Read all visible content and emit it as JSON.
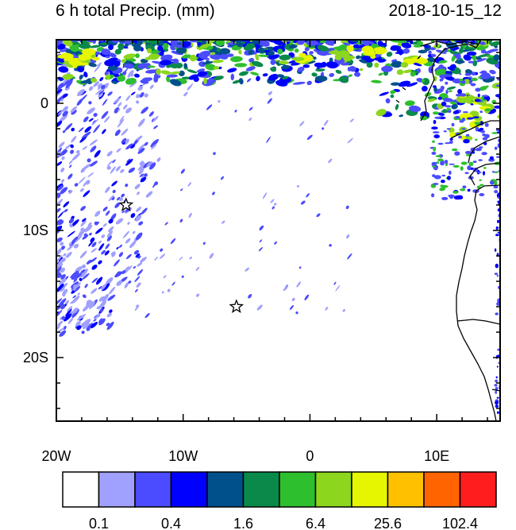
{
  "header": {
    "title_left": "6 h total Precip. (mm)",
    "title_right": "2018-10-15_12"
  },
  "axes": {
    "x_ticks": [
      {
        "value": -20,
        "label": "20W"
      },
      {
        "value": -10,
        "label": "10W"
      },
      {
        "value": 0,
        "label": "0"
      },
      {
        "value": 10,
        "label": "10E"
      }
    ],
    "y_ticks": [
      {
        "value": 0,
        "label": "0"
      },
      {
        "value": -10,
        "label": "10S"
      },
      {
        "value": -20,
        "label": "20S"
      }
    ],
    "lon_range": [
      -20,
      15
    ],
    "lat_range": [
      -25,
      5
    ]
  },
  "markers": [
    {
      "name": "star-marker-north",
      "lon": -14.5,
      "lat": -8
    },
    {
      "name": "star-marker-south",
      "lon": -5.8,
      "lat": -16
    }
  ],
  "colorbar": {
    "colors": [
      "#ffffff",
      "#a0a0ff",
      "#4b4bff",
      "#0000ff",
      "#00508c",
      "#0a8a4a",
      "#2ebf2e",
      "#8cd61e",
      "#e6f500",
      "#ffc000",
      "#ff6400",
      "#ff1e1e"
    ],
    "labels": [
      {
        "text": "0.1",
        "after_box": 1
      },
      {
        "text": "0.4",
        "after_box": 3
      },
      {
        "text": "1.6",
        "after_box": 5
      },
      {
        "text": "6.4",
        "after_box": 7
      },
      {
        "text": "25.6",
        "after_box": 9
      },
      {
        "text": "102.4",
        "after_box": 11
      }
    ]
  }
}
